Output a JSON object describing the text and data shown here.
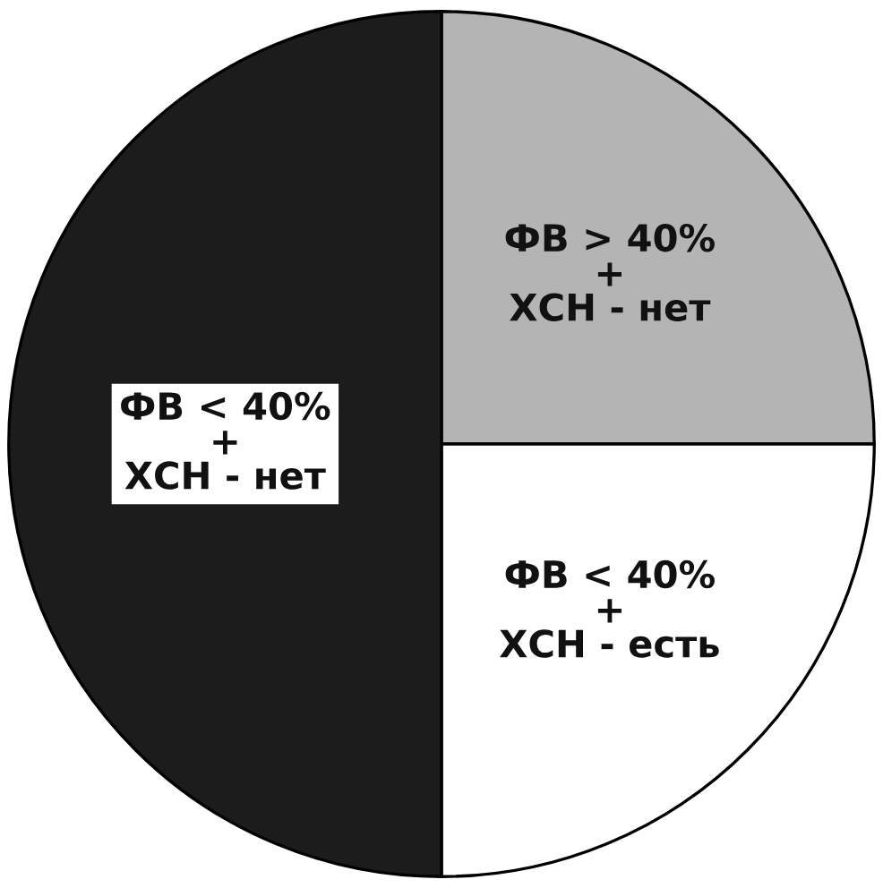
{
  "chart_data": {
    "type": "pie",
    "categories": [
      "ФВ > 40%\n+\nХСН - нет",
      "ФВ < 40%\n+\nХСН - есть",
      "ФВ < 40%\n+\nХСН - нет"
    ],
    "values": [
      25,
      25,
      50
    ],
    "colors": [
      "#b4b4b4",
      "#ffffff",
      "#1c1c1c"
    ]
  }
}
